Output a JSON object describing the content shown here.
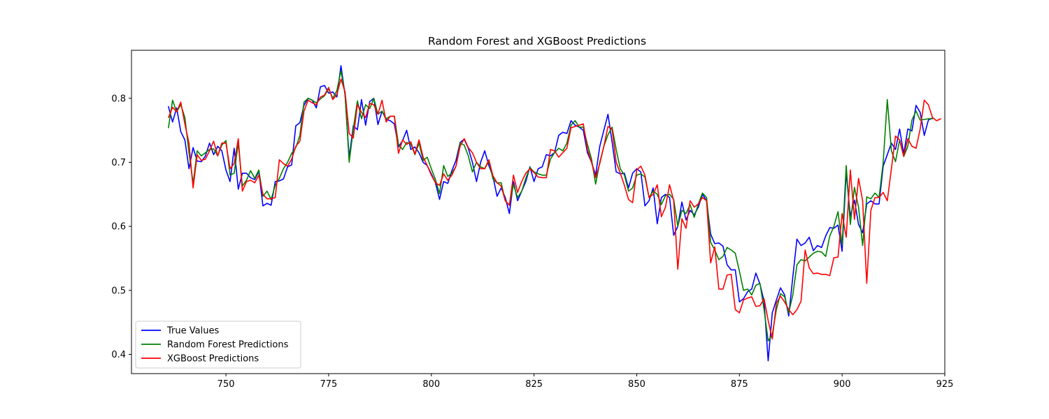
{
  "chart_data": {
    "type": "line",
    "title": "Random Forest and XGBoost Predictions",
    "xlabel": "",
    "ylabel": "",
    "xlim": [
      727,
      925
    ],
    "ylim": [
      0.37,
      0.875
    ],
    "x_ticks": [
      750,
      775,
      800,
      825,
      850,
      875,
      900,
      925
    ],
    "y_ticks": [
      0.4,
      0.5,
      0.6,
      0.7,
      0.8
    ],
    "grid": false,
    "legend_position": "lower-left",
    "x_start": 736,
    "series": [
      {
        "name": "True Values",
        "color": "#0000ff",
        "values": [
          0.787,
          0.763,
          0.785,
          0.748,
          0.735,
          0.69,
          0.723,
          0.702,
          0.701,
          0.71,
          0.73,
          0.712,
          0.725,
          0.718,
          0.688,
          0.67,
          0.722,
          0.658,
          0.683,
          0.683,
          0.676,
          0.673,
          0.686,
          0.632,
          0.636,
          0.633,
          0.67,
          0.671,
          0.674,
          0.693,
          0.696,
          0.757,
          0.762,
          0.789,
          0.8,
          0.797,
          0.785,
          0.818,
          0.82,
          0.808,
          0.81,
          0.802,
          0.851,
          0.805,
          0.707,
          0.757,
          0.751,
          0.798,
          0.758,
          0.795,
          0.8,
          0.759,
          0.78,
          0.767,
          0.765,
          0.76,
          0.724,
          0.734,
          0.75,
          0.72,
          0.724,
          0.715,
          0.7,
          0.695,
          0.682,
          0.668,
          0.642,
          0.67,
          0.667,
          0.687,
          0.703,
          0.731,
          0.736,
          0.722,
          0.7,
          0.67,
          0.7,
          0.718,
          0.695,
          0.678,
          0.647,
          0.66,
          0.645,
          0.62,
          0.67,
          0.64,
          0.655,
          0.67,
          0.693,
          0.67,
          0.69,
          0.693,
          0.712,
          0.71,
          0.715,
          0.742,
          0.747,
          0.745,
          0.765,
          0.758,
          0.755,
          0.75,
          0.715,
          0.7,
          0.68,
          0.725,
          0.75,
          0.775,
          0.732,
          0.685,
          0.682,
          0.683,
          0.66,
          0.683,
          0.69,
          0.685,
          0.632,
          0.64,
          0.66,
          0.604,
          0.645,
          0.65,
          0.645,
          0.586,
          0.6,
          0.638,
          0.61,
          0.625,
          0.618,
          0.63,
          0.65,
          0.64,
          0.588,
          0.573,
          0.574,
          0.569,
          0.54,
          0.532,
          0.532,
          0.482,
          0.487,
          0.498,
          0.502,
          0.527,
          0.51,
          0.483,
          0.39,
          0.465,
          0.485,
          0.504,
          0.493,
          0.46,
          0.521,
          0.58,
          0.57,
          0.574,
          0.583,
          0.562,
          0.57,
          0.567,
          0.585,
          0.598,
          0.597,
          0.602,
          0.561,
          0.684,
          0.616,
          0.641,
          0.603,
          0.59,
          0.635,
          0.64,
          0.635,
          0.635,
          0.694,
          0.712,
          0.73,
          0.72,
          0.752,
          0.713,
          0.752,
          0.749,
          0.789,
          0.778,
          0.742,
          0.766,
          0.769
        ]
      },
      {
        "name": "Random Forest Predictions",
        "color": "#008000",
        "values": [
          0.754,
          0.797,
          0.779,
          0.79,
          0.77,
          0.715,
          0.667,
          0.718,
          0.71,
          0.715,
          0.72,
          0.721,
          0.71,
          0.727,
          0.734,
          0.68,
          0.683,
          0.73,
          0.663,
          0.672,
          0.687,
          0.675,
          0.688,
          0.647,
          0.655,
          0.642,
          0.664,
          0.675,
          0.69,
          0.7,
          0.714,
          0.723,
          0.742,
          0.794,
          0.8,
          0.797,
          0.793,
          0.799,
          0.804,
          0.815,
          0.8,
          0.812,
          0.843,
          0.806,
          0.7,
          0.752,
          0.796,
          0.768,
          0.79,
          0.784,
          0.8,
          0.775,
          0.78,
          0.768,
          0.772,
          0.772,
          0.728,
          0.72,
          0.731,
          0.729,
          0.712,
          0.73,
          0.703,
          0.708,
          0.69,
          0.673,
          0.651,
          0.695,
          0.678,
          0.683,
          0.694,
          0.73,
          0.727,
          0.71,
          0.685,
          0.7,
          0.693,
          0.69,
          0.702,
          0.674,
          0.668,
          0.668,
          0.64,
          0.633,
          0.665,
          0.645,
          0.655,
          0.675,
          0.692,
          0.685,
          0.682,
          0.68,
          0.68,
          0.705,
          0.715,
          0.722,
          0.718,
          0.73,
          0.758,
          0.765,
          0.755,
          0.755,
          0.728,
          0.705,
          0.666,
          0.7,
          0.725,
          0.743,
          0.755,
          0.72,
          0.69,
          0.68,
          0.655,
          0.66,
          0.68,
          0.682,
          0.677,
          0.645,
          0.655,
          0.65,
          0.634,
          0.648,
          0.65,
          0.642,
          0.6,
          0.625,
          0.62,
          0.634,
          0.614,
          0.635,
          0.652,
          0.645,
          0.575,
          0.563,
          0.548,
          0.553,
          0.567,
          0.563,
          0.558,
          0.53,
          0.5,
          0.502,
          0.493,
          0.508,
          0.511,
          0.47,
          0.421,
          0.431,
          0.47,
          0.495,
          0.49,
          0.465,
          0.493,
          0.54,
          0.548,
          0.546,
          0.552,
          0.558,
          0.561,
          0.56,
          0.553,
          0.585,
          0.6,
          0.623,
          0.571,
          0.695,
          0.603,
          0.661,
          0.63,
          0.57,
          0.646,
          0.643,
          0.652,
          0.645,
          0.7,
          0.798,
          0.718,
          0.701,
          0.735,
          0.709,
          0.725,
          0.766,
          0.78,
          0.766,
          0.767,
          0.768,
          0.768
        ]
      },
      {
        "name": "XGBoost Predictions",
        "color": "#ff0000",
        "values": [
          0.77,
          0.786,
          0.779,
          0.794,
          0.76,
          0.73,
          0.66,
          0.712,
          0.703,
          0.705,
          0.718,
          0.733,
          0.71,
          0.73,
          0.73,
          0.69,
          0.698,
          0.737,
          0.655,
          0.67,
          0.672,
          0.668,
          0.68,
          0.65,
          0.643,
          0.643,
          0.645,
          0.704,
          0.698,
          0.694,
          0.705,
          0.725,
          0.733,
          0.78,
          0.797,
          0.793,
          0.79,
          0.802,
          0.805,
          0.817,
          0.798,
          0.806,
          0.83,
          0.81,
          0.745,
          0.738,
          0.79,
          0.778,
          0.77,
          0.792,
          0.79,
          0.775,
          0.797,
          0.763,
          0.772,
          0.772,
          0.714,
          0.735,
          0.728,
          0.732,
          0.713,
          0.735,
          0.708,
          0.695,
          0.68,
          0.668,
          0.664,
          0.682,
          0.672,
          0.68,
          0.694,
          0.725,
          0.737,
          0.723,
          0.715,
          0.7,
          0.69,
          0.69,
          0.704,
          0.679,
          0.668,
          0.663,
          0.64,
          0.633,
          0.68,
          0.653,
          0.67,
          0.683,
          0.69,
          0.684,
          0.677,
          0.676,
          0.676,
          0.72,
          0.718,
          0.708,
          0.715,
          0.722,
          0.754,
          0.756,
          0.758,
          0.76,
          0.72,
          0.7,
          0.676,
          0.698,
          0.725,
          0.756,
          0.752,
          0.7,
          0.683,
          0.664,
          0.642,
          0.637,
          0.688,
          0.694,
          0.68,
          0.645,
          0.65,
          0.665,
          0.615,
          0.63,
          0.665,
          0.64,
          0.533,
          0.612,
          0.597,
          0.64,
          0.63,
          0.635,
          0.645,
          0.64,
          0.543,
          0.568,
          0.502,
          0.502,
          0.524,
          0.525,
          0.47,
          0.465,
          0.485,
          0.488,
          0.49,
          0.475,
          0.476,
          0.487,
          0.453,
          0.424,
          0.48,
          0.491,
          0.482,
          0.47,
          0.462,
          0.47,
          0.483,
          0.563,
          0.535,
          0.526,
          0.527,
          0.525,
          0.525,
          0.523,
          0.551,
          0.552,
          0.62,
          0.583,
          0.688,
          0.611,
          0.675,
          0.64,
          0.511,
          0.625,
          0.645,
          0.645,
          0.653,
          0.64,
          0.69,
          0.741,
          0.735,
          0.71,
          0.737,
          0.725,
          0.722,
          0.752,
          0.797,
          0.79,
          0.77,
          0.765,
          0.768
        ]
      }
    ]
  }
}
